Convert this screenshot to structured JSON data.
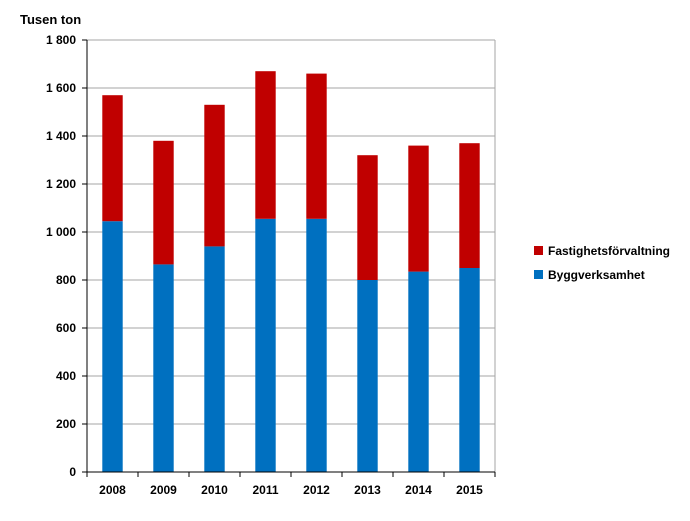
{
  "chart_data": {
    "type": "bar",
    "stacked": true,
    "title": "",
    "ylabel": "Tusen ton",
    "xlabel": "",
    "categories": [
      "2008",
      "2009",
      "2010",
      "2011",
      "2012",
      "2013",
      "2014",
      "2015"
    ],
    "series": [
      {
        "name": "Byggverksamhet",
        "color": "#0070C0",
        "values": [
          1045,
          865,
          940,
          1055,
          1055,
          800,
          835,
          850
        ]
      },
      {
        "name": "Fastighetsförvaltning",
        "color": "#C00000",
        "values": [
          525,
          515,
          590,
          615,
          605,
          520,
          525,
          520
        ]
      }
    ],
    "ylim": [
      0,
      1800
    ],
    "yticks": [
      0,
      200,
      400,
      600,
      800,
      1000,
      1200,
      1400,
      1600,
      1800
    ],
    "ytick_labels": [
      "0",
      "200",
      "400",
      "600",
      "800",
      "1 000",
      "1 200",
      "1 400",
      "1 600",
      "1 800"
    ],
    "grid": true,
    "legend_position": "right",
    "legend_order": [
      "Fastighetsförvaltning",
      "Byggverksamhet"
    ]
  }
}
